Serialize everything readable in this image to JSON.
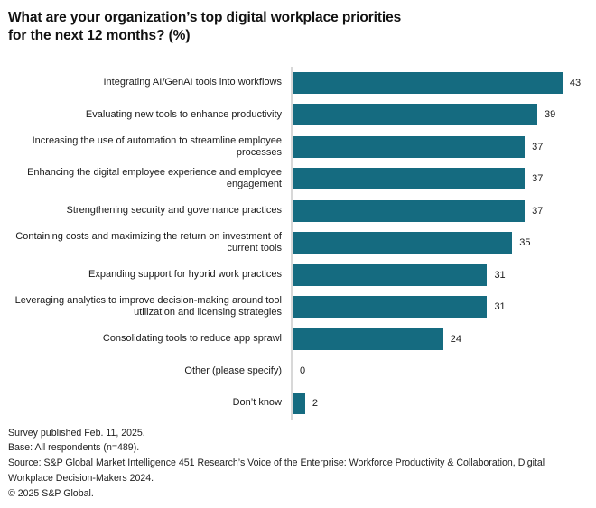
{
  "title": {
    "line1": "What are your organization’s top digital workplace priorities",
    "line2": "for the next 12 months? (%)"
  },
  "chart_data": {
    "type": "bar",
    "orientation": "horizontal",
    "title": "What are your organization’s top digital workplace priorities for the next 12 months? (%)",
    "categories": [
      "Integrating AI/GenAI tools into workflows",
      "Evaluating new tools to enhance productivity",
      "Increasing the use of automation to streamline employee processes",
      "Enhancing the digital employee experience and employee engagement",
      "Strengthening security and governance practices",
      "Containing costs and maximizing the return on investment of current tools",
      "Expanding support for hybrid work practices",
      "Leveraging analytics to improve decision-making around tool utilization and licensing strategies",
      "Consolidating tools to reduce app sprawl",
      "Other (please specify)",
      "Don’t know"
    ],
    "values": [
      43,
      39,
      37,
      37,
      37,
      35,
      31,
      31,
      24,
      0,
      2
    ],
    "xlabel": "",
    "ylabel": "",
    "xlim": [
      0,
      47
    ],
    "grid": false,
    "legend": false,
    "value_labels_shown": true,
    "bar_color": "#156b80",
    "axis_color": "#d8d8d8"
  },
  "footer": {
    "lines": [
      "Survey published Feb. 11, 2025.",
      "Base: All respondents (n=489).",
      "Source: S&P Global Market Intelligence 451 Research’s Voice of the Enterprise: Workforce Productivity & Collaboration, Digital Workplace Decision-Makers 2024.",
      "© 2025 S&P Global."
    ]
  }
}
